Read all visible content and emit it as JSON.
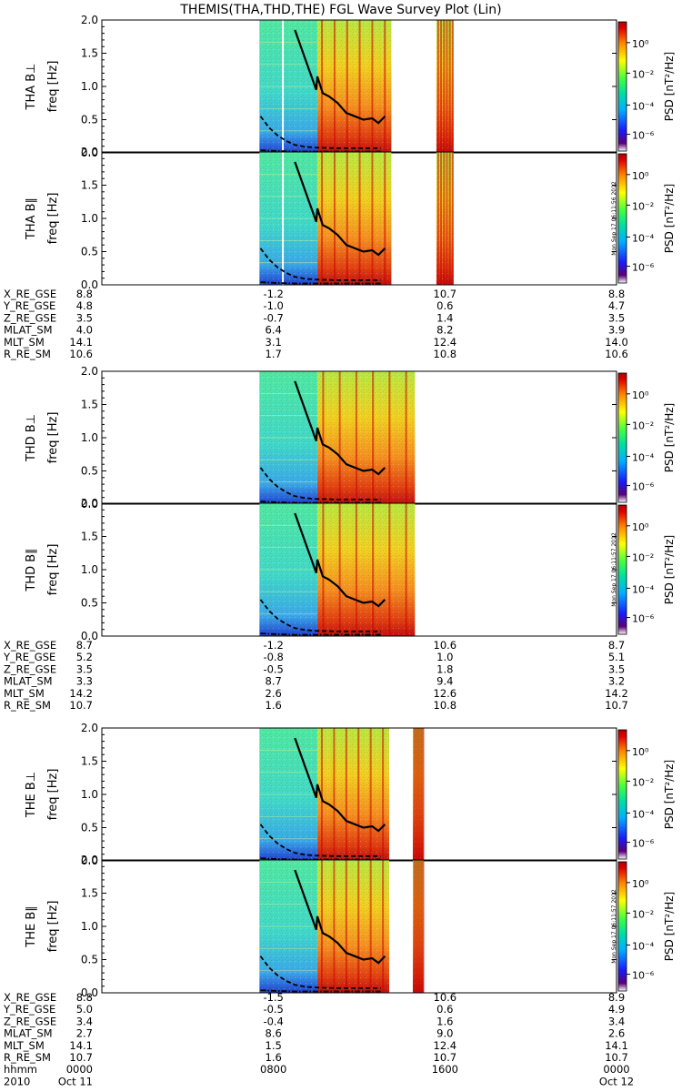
{
  "title": "THEMIS(THA,THD,THE) FGL Wave Survey Plot (Lin)",
  "chart_data": [
    {
      "type": "heatmap",
      "panel": "THA B⊥",
      "ylabel_probe": "THA B⊥",
      "ylabel": "freq [Hz]",
      "y_ticks": [
        "0.0",
        "0.5",
        "1.0",
        "1.5",
        "2.0"
      ],
      "ylim": [
        0,
        2.0
      ],
      "xlim_hours": [
        0,
        24
      ],
      "data_blocks_hours": [
        [
          7.35,
          10.05,
          "sparse"
        ],
        [
          10.05,
          13.5,
          "dense"
        ],
        [
          15.6,
          16.4,
          "dense"
        ]
      ],
      "white_gaps_hours": [
        [
          8.4,
          8.48
        ]
      ],
      "colorbar": {
        "label": "PSD [nT²/Hz]",
        "ticks": [
          "10⁰",
          "10⁻²",
          "10⁻⁴",
          "10⁻⁶"
        ]
      },
      "series": [
        {
          "style": "solid",
          "x": [
            9.0,
            9.5,
            10.0,
            10.05,
            10.3,
            10.6,
            11.0,
            11.4,
            11.8,
            12.2,
            12.6,
            12.9,
            13.2
          ],
          "y": [
            1.85,
            1.4,
            0.95,
            1.15,
            0.9,
            0.85,
            0.75,
            0.6,
            0.55,
            0.5,
            0.52,
            0.45,
            0.55
          ]
        },
        {
          "style": "dashed",
          "x": [
            7.4,
            7.8,
            8.2,
            8.6,
            9.0,
            9.5,
            10.0,
            11.0,
            12.0,
            13.0
          ],
          "y": [
            0.55,
            0.38,
            0.26,
            0.18,
            0.12,
            0.09,
            0.08,
            0.07,
            0.07,
            0.07
          ]
        },
        {
          "style": "dashdot",
          "x": [
            7.4,
            8.0,
            9.0,
            10.0,
            11.0,
            12.0,
            13.0
          ],
          "y": [
            0.04,
            0.03,
            0.02,
            0.02,
            0.02,
            0.02,
            0.02
          ]
        }
      ]
    },
    {
      "type": "heatmap",
      "panel": "THA B∥",
      "ylabel_probe": "THA B∥",
      "ylabel": "freq [Hz]",
      "y_ticks": [
        "0.0",
        "0.5",
        "1.0",
        "1.5",
        "2.0"
      ],
      "ylim": [
        0,
        2.0
      ],
      "stamp": "Mon Sep 17 06:11:56 2012",
      "colorbar": {
        "label": "PSD [nT²/Hz]",
        "ticks": [
          "10⁰",
          "10⁻²",
          "10⁻⁴",
          "10⁻⁶"
        ]
      }
    },
    {
      "type": "heatmap",
      "panel": "THD B⊥",
      "ylabel_probe": "THD B⊥",
      "ylabel": "freq [Hz]",
      "y_ticks": [
        "0.0",
        "0.5",
        "1.0",
        "1.5",
        "2.0"
      ],
      "ylim": [
        0,
        2.0
      ],
      "data_blocks_hours": [
        [
          7.35,
          10.05,
          "sparse"
        ],
        [
          10.05,
          14.6,
          "dense"
        ]
      ],
      "colorbar": {
        "label": "PSD [nT²/Hz]",
        "ticks": [
          "10⁰",
          "10⁻²",
          "10⁻⁴",
          "10⁻⁶"
        ]
      }
    },
    {
      "type": "heatmap",
      "panel": "THD B∥",
      "ylabel_probe": "THD B∥",
      "ylabel": "freq [Hz]",
      "y_ticks": [
        "0.0",
        "0.5",
        "1.0",
        "1.5",
        "2.0"
      ],
      "ylim": [
        0,
        2.0
      ],
      "stamp": "Mon Sep 17 06:11:57 2012",
      "colorbar": {
        "label": "PSD [nT²/Hz]",
        "ticks": [
          "10⁰",
          "10⁻²",
          "10⁻⁴",
          "10⁻⁶"
        ]
      }
    },
    {
      "type": "heatmap",
      "panel": "THE B⊥",
      "ylabel_probe": "THE B⊥",
      "ylabel": "freq [Hz]",
      "y_ticks": [
        "0.0",
        "0.5",
        "1.0",
        "1.5",
        "2.0"
      ],
      "ylim": [
        0,
        2.0
      ],
      "data_blocks_hours": [
        [
          7.35,
          10.05,
          "sparse"
        ],
        [
          10.05,
          13.4,
          "dense"
        ],
        [
          14.5,
          15.0,
          "dense"
        ]
      ],
      "colorbar": {
        "label": "PSD [nT²/Hz]",
        "ticks": [
          "10⁰",
          "10⁻²",
          "10⁻⁴",
          "10⁻⁶"
        ]
      }
    },
    {
      "type": "heatmap",
      "panel": "THE B∥",
      "ylabel_probe": "THE B∥",
      "ylabel": "freq [Hz]",
      "y_ticks": [
        "0.0",
        "0.5",
        "1.0",
        "1.5",
        "2.0"
      ],
      "ylim": [
        0,
        2.0
      ],
      "stamp": "Mon Sep 17 06:11:57 2012",
      "colorbar": {
        "label": "PSD [nT²/Hz]",
        "ticks": [
          "10⁰",
          "10⁻²",
          "10⁻⁴",
          "10⁻⁶"
        ]
      }
    }
  ],
  "ephemeris": [
    {
      "rows": [
        {
          "label": "X_RE_GSE",
          "vals": [
            "8.8",
            "-1.2",
            "10.7",
            "8.8"
          ]
        },
        {
          "label": "Y_RE_GSE",
          "vals": [
            "4.8",
            "-1.0",
            "0.6",
            "4.7"
          ]
        },
        {
          "label": "Z_RE_GSE",
          "vals": [
            "3.5",
            "-0.7",
            "1.4",
            "3.5"
          ]
        },
        {
          "label": "MLAT_SM",
          "vals": [
            "4.0",
            "6.4",
            "8.2",
            "3.9"
          ]
        },
        {
          "label": "MLT_SM",
          "vals": [
            "14.1",
            "3.1",
            "12.4",
            "14.0"
          ]
        },
        {
          "label": "R_RE_SM",
          "vals": [
            "10.6",
            "1.7",
            "10.8",
            "10.6"
          ]
        }
      ]
    },
    {
      "rows": [
        {
          "label": "X_RE_GSE",
          "vals": [
            "8.7",
            "-1.2",
            "10.6",
            "8.7"
          ]
        },
        {
          "label": "Y_RE_GSE",
          "vals": [
            "5.2",
            "-0.8",
            "1.0",
            "5.1"
          ]
        },
        {
          "label": "Z_RE_GSE",
          "vals": [
            "3.5",
            "-0.5",
            "1.8",
            "3.5"
          ]
        },
        {
          "label": "MLAT_SM",
          "vals": [
            "3.3",
            "8.7",
            "9.4",
            "3.2"
          ]
        },
        {
          "label": "MLT_SM",
          "vals": [
            "14.2",
            "2.6",
            "12.6",
            "14.2"
          ]
        },
        {
          "label": "R_RE_SM",
          "vals": [
            "10.7",
            "1.6",
            "10.8",
            "10.7"
          ]
        }
      ]
    },
    {
      "rows": [
        {
          "label": "X_RE_GSE",
          "vals": [
            "8.8",
            "-1.5",
            "10.6",
            "8.9"
          ]
        },
        {
          "label": "Y_RE_GSE",
          "vals": [
            "5.0",
            "-0.5",
            "0.6",
            "4.9"
          ]
        },
        {
          "label": "Z_RE_GSE",
          "vals": [
            "3.4",
            "-0.4",
            "1.6",
            "3.4"
          ]
        },
        {
          "label": "MLAT_SM",
          "vals": [
            "2.7",
            "8.6",
            "9.0",
            "2.6"
          ]
        },
        {
          "label": "MLT_SM",
          "vals": [
            "14.1",
            "1.5",
            "12.4",
            "14.1"
          ]
        },
        {
          "label": "R_RE_SM",
          "vals": [
            "10.7",
            "1.6",
            "10.7",
            "10.7"
          ]
        },
        {
          "label": "hhmm",
          "vals": [
            "0000",
            "0800",
            "1600",
            "0000"
          ]
        }
      ],
      "date_row": {
        "label": "2010",
        "vals": [
          "Oct 11",
          "Oct 12"
        ]
      }
    }
  ],
  "colors": {
    "jet_dark": "#00007f",
    "jet_blue": "#0040ff",
    "jet_cyan": "#00e0ff",
    "jet_green": "#40ff80",
    "jet_yellow": "#ffe000",
    "jet_orange": "#ff8000",
    "jet_red": "#d00000"
  }
}
